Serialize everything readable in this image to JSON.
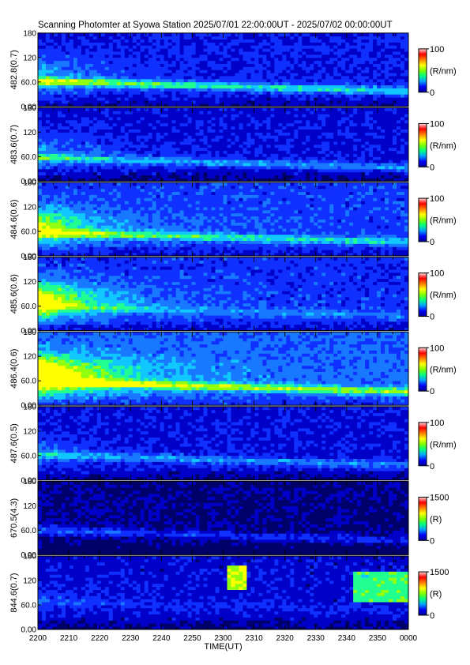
{
  "title": "Scanning Photomter at Syowa Station 2025/07/01 22:00:00UT - 2025/07/02 00:00:00UT",
  "chart_data": {
    "type": "heatmap",
    "xlabel": "TIME(UT)",
    "x_tick_labels": [
      "2200",
      "2210",
      "2220",
      "2230",
      "2240",
      "2250",
      "2300",
      "2310",
      "2320",
      "2330",
      "2340",
      "2350",
      "0000"
    ],
    "y_tick_labels": [
      "0.00",
      "60.0",
      "120",
      "180"
    ],
    "ylim": [
      0,
      180
    ],
    "colormap": [
      "#00008f",
      "#0000ff",
      "#00a0ff",
      "#00ff80",
      "#80ff00",
      "#ffff00",
      "#ff8000",
      "#ff0000",
      "#ffd8d8"
    ],
    "panels": [
      {
        "label": "482.8(0.7)",
        "unit": "(R/nm)",
        "cb_ticks": [
          "0",
          "100"
        ],
        "cb_max": 100,
        "features": {
          "base": 0.25,
          "band_y": 62,
          "band_intensity": 0.5,
          "early_glow": 0.3
        }
      },
      {
        "label": "483.6(0.7)",
        "unit": "(R/nm)",
        "cb_ticks": [
          "0",
          "100"
        ],
        "cb_max": 100,
        "features": {
          "base": 0.22,
          "band_y": 58,
          "band_intensity": 0.35,
          "early_glow": 0.25
        }
      },
      {
        "label": "484.6(0.6)",
        "unit": "(R/nm)",
        "cb_ticks": [
          "0",
          "100"
        ],
        "cb_max": 100,
        "features": {
          "base": 0.32,
          "band_y": 58,
          "band_intensity": 0.4,
          "early_glow": 0.55
        }
      },
      {
        "label": "485.6(0.6)",
        "unit": "(R/nm)",
        "cb_ticks": [
          "0",
          "100"
        ],
        "cb_max": 100,
        "features": {
          "base": 0.3,
          "band_y": 60,
          "band_intensity": 0.2,
          "early_glow": 0.75
        }
      },
      {
        "label": "486.4(0.6)",
        "unit": "(R/nm)",
        "cb_ticks": [
          "0",
          "100"
        ],
        "cb_max": 100,
        "features": {
          "base": 0.4,
          "band_y": 58,
          "band_intensity": 0.55,
          "early_glow": 0.9
        }
      },
      {
        "label": "487.6(0.5)",
        "unit": "(R/nm)",
        "cb_ticks": [
          "0",
          "100"
        ],
        "cb_max": 100,
        "features": {
          "base": 0.22,
          "band_y": 62,
          "band_intensity": 0.3,
          "early_glow": 0.15
        }
      },
      {
        "label": "670.5(4.3)",
        "unit": "(R)",
        "cb_ticks": [
          "0",
          "1500"
        ],
        "cb_max": 1500,
        "features": {
          "base": 0.1,
          "band_y": 60,
          "band_intensity": 0.25,
          "early_glow": 0.05
        }
      },
      {
        "label": "844.6(0.7)",
        "unit": "(R)",
        "cb_ticks": [
          "0",
          "1500"
        ],
        "cb_max": 1500,
        "features": {
          "base": 0.2,
          "band_y": 70,
          "band_intensity": 0.1,
          "early_glow": 0.1,
          "patches": [
            {
              "t0": 1.01,
              "t1": 1.12,
              "y0": 100,
              "y1": 155,
              "v": 0.65
            },
            {
              "t0": 1.7,
              "t1": 2.0,
              "y0": 70,
              "y1": 140,
              "v": 0.5
            }
          ]
        }
      }
    ]
  }
}
